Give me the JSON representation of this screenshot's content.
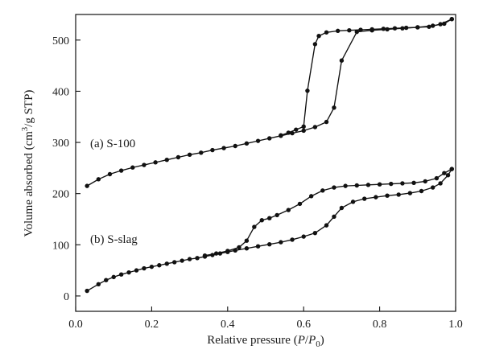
{
  "chart_data": {
    "type": "line",
    "title": "",
    "xlabel": {
      "prefix": "Relative pressure (",
      "p": "P",
      "slash": "/",
      "p0": "P",
      "p0_sub": "0",
      "suffix": ")"
    },
    "ylabel": {
      "prefix": "Volume absorbed (cm",
      "sup": "3",
      "suffix": "/g STP)"
    },
    "xlim": [
      0.0,
      1.0
    ],
    "ylim": [
      -30,
      550
    ],
    "xticks": [
      "0.0",
      "0.2",
      "0.4",
      "0.6",
      "0.8",
      "1.0"
    ],
    "xtick_values": [
      0.0,
      0.2,
      0.4,
      0.6,
      0.8,
      1.0
    ],
    "yticks": [
      "0",
      "100",
      "200",
      "300",
      "400",
      "500"
    ],
    "ytick_values": [
      0,
      100,
      200,
      300,
      400,
      500
    ],
    "grid": false,
    "legend": "none",
    "colors": {
      "line": "#111111",
      "marker": "#111111"
    },
    "series": [
      {
        "name": "(a) S-100",
        "label_position": "left-middle",
        "adsorption": [
          [
            0.03,
            215
          ],
          [
            0.06,
            228
          ],
          [
            0.09,
            238
          ],
          [
            0.12,
            245
          ],
          [
            0.15,
            251
          ],
          [
            0.18,
            256
          ],
          [
            0.21,
            261
          ],
          [
            0.24,
            266
          ],
          [
            0.27,
            271
          ],
          [
            0.3,
            276
          ],
          [
            0.33,
            280
          ],
          [
            0.36,
            285
          ],
          [
            0.39,
            289
          ],
          [
            0.42,
            293
          ],
          [
            0.45,
            298
          ],
          [
            0.48,
            303
          ],
          [
            0.51,
            308
          ],
          [
            0.54,
            313
          ],
          [
            0.57,
            318
          ],
          [
            0.6,
            323
          ],
          [
            0.63,
            330
          ],
          [
            0.66,
            340
          ],
          [
            0.68,
            368
          ],
          [
            0.7,
            460
          ],
          [
            0.74,
            516
          ],
          [
            0.78,
            519
          ],
          [
            0.82,
            521
          ],
          [
            0.86,
            523
          ],
          [
            0.9,
            525
          ],
          [
            0.94,
            528
          ],
          [
            0.97,
            532
          ],
          [
            0.99,
            541
          ]
        ],
        "desorption": [
          [
            0.99,
            541
          ],
          [
            0.96,
            531
          ],
          [
            0.93,
            526
          ],
          [
            0.9,
            525
          ],
          [
            0.87,
            524
          ],
          [
            0.84,
            523
          ],
          [
            0.81,
            522
          ],
          [
            0.78,
            521
          ],
          [
            0.75,
            520
          ],
          [
            0.72,
            519
          ],
          [
            0.69,
            518
          ],
          [
            0.66,
            515
          ],
          [
            0.64,
            508
          ],
          [
            0.63,
            492
          ],
          [
            0.61,
            401
          ],
          [
            0.6,
            331
          ],
          [
            0.58,
            325
          ],
          [
            0.56,
            319
          ],
          [
            0.54,
            314
          ]
        ]
      },
      {
        "name": "(b) S-slag",
        "label_position": "left-lower",
        "adsorption": [
          [
            0.03,
            10
          ],
          [
            0.06,
            23
          ],
          [
            0.08,
            31
          ],
          [
            0.1,
            37
          ],
          [
            0.12,
            42
          ],
          [
            0.14,
            46
          ],
          [
            0.16,
            50
          ],
          [
            0.18,
            54
          ],
          [
            0.2,
            57
          ],
          [
            0.22,
            60
          ],
          [
            0.24,
            63
          ],
          [
            0.26,
            66
          ],
          [
            0.28,
            69
          ],
          [
            0.3,
            72
          ],
          [
            0.32,
            74
          ],
          [
            0.34,
            77
          ],
          [
            0.36,
            80
          ],
          [
            0.38,
            83
          ],
          [
            0.4,
            86
          ],
          [
            0.42,
            89
          ],
          [
            0.45,
            93
          ],
          [
            0.48,
            97
          ],
          [
            0.51,
            101
          ],
          [
            0.54,
            105
          ],
          [
            0.57,
            110
          ],
          [
            0.6,
            116
          ],
          [
            0.63,
            123
          ],
          [
            0.66,
            138
          ],
          [
            0.68,
            155
          ],
          [
            0.7,
            172
          ],
          [
            0.73,
            184
          ],
          [
            0.76,
            190
          ],
          [
            0.79,
            193
          ],
          [
            0.82,
            196
          ],
          [
            0.85,
            198
          ],
          [
            0.88,
            201
          ],
          [
            0.91,
            205
          ],
          [
            0.94,
            212
          ],
          [
            0.96,
            220
          ],
          [
            0.98,
            236
          ],
          [
            0.99,
            248
          ]
        ],
        "desorption": [
          [
            0.99,
            248
          ],
          [
            0.97,
            240
          ],
          [
            0.95,
            230
          ],
          [
            0.92,
            224
          ],
          [
            0.89,
            221
          ],
          [
            0.86,
            220
          ],
          [
            0.83,
            219
          ],
          [
            0.8,
            218
          ],
          [
            0.77,
            217
          ],
          [
            0.74,
            216
          ],
          [
            0.71,
            215
          ],
          [
            0.68,
            212
          ],
          [
            0.65,
            206
          ],
          [
            0.62,
            195
          ],
          [
            0.59,
            180
          ],
          [
            0.56,
            168
          ],
          [
            0.53,
            158
          ],
          [
            0.51,
            152
          ],
          [
            0.49,
            148
          ],
          [
            0.47,
            135
          ],
          [
            0.45,
            108
          ],
          [
            0.43,
            95
          ],
          [
            0.4,
            88
          ],
          [
            0.37,
            83
          ],
          [
            0.34,
            79
          ]
        ]
      }
    ]
  }
}
